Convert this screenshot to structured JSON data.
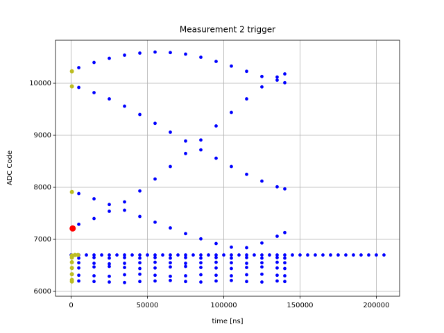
{
  "chart_data": {
    "type": "scatter",
    "title": "Measurement 2 trigger",
    "xlabel": "time [ns]",
    "ylabel": "ADC Code",
    "xlim": [
      -10250,
      215250
    ],
    "ylim": [
      5907,
      10827
    ],
    "xticks": [
      0,
      50000,
      100000,
      150000,
      200000
    ],
    "yticks": [
      6000,
      7000,
      8000,
      9000,
      10000
    ],
    "grid": true,
    "series": [
      {
        "color": "#0000ff",
        "x": [
          5000,
          15000,
          25000,
          35000,
          45000,
          55000,
          65000,
          75000,
          85000,
          95000,
          105000,
          115000,
          125000,
          135000,
          140000
        ],
        "y": [
          10300,
          10400,
          10480,
          10540,
          10580,
          10600,
          10590,
          10560,
          10500,
          10420,
          10330,
          10230,
          10130,
          10060,
          10010
        ]
      },
      {
        "color": "#0000ff",
        "x": [
          5000,
          15000,
          25000,
          35000,
          45000,
          55000,
          65000,
          75000,
          85000,
          95000,
          105000,
          115000,
          125000,
          135000,
          140000
        ],
        "y": [
          9920,
          9820,
          9700,
          9560,
          9400,
          9230,
          9060,
          8890,
          8720,
          8560,
          8400,
          8250,
          8120,
          8010,
          7970
        ]
      },
      {
        "color": "#0000ff",
        "x": [
          5000,
          15000,
          25000,
          35000,
          45000,
          55000,
          65000,
          75000,
          85000,
          95000,
          105000,
          115000,
          125000,
          135000,
          140000
        ],
        "y": [
          7290,
          7400,
          7540,
          7720,
          7930,
          8160,
          8400,
          8650,
          8910,
          9180,
          9440,
          9700,
          9930,
          10120,
          10180
        ]
      },
      {
        "color": "#0000ff",
        "x": [
          5000,
          15000,
          25000,
          35000,
          45000,
          55000,
          65000,
          75000,
          85000,
          95000,
          105000,
          115000,
          125000,
          135000,
          140000
        ],
        "y": [
          7880,
          7780,
          7670,
          7560,
          7440,
          7330,
          7220,
          7110,
          7010,
          6920,
          6850,
          6840,
          6930,
          7060,
          7130
        ]
      },
      {
        "color": "#0000ff",
        "x": [
          0,
          5000,
          10000,
          15000,
          20000,
          25000,
          30000,
          35000,
          40000,
          45000,
          50000,
          55000,
          60000,
          65000,
          70000,
          75000,
          80000,
          85000,
          90000,
          95000,
          100000,
          105000,
          110000,
          115000,
          120000,
          125000,
          130000,
          135000,
          140000,
          145000,
          150000,
          155000,
          160000,
          165000,
          170000,
          175000,
          180000,
          185000,
          190000,
          195000,
          200000,
          205000
        ],
        "y": [
          6700,
          6700,
          6700,
          6700,
          6700,
          6700,
          6700,
          6700,
          6700,
          6700,
          6700,
          6700,
          6700,
          6700,
          6700,
          6700,
          6700,
          6700,
          6700,
          6700,
          6700,
          6700,
          6700,
          6700,
          6700,
          6700,
          6700,
          6700,
          6700,
          6700,
          6700,
          6700,
          6700,
          6700,
          6700,
          6700,
          6700,
          6700,
          6700,
          6700,
          6700,
          6700
        ]
      },
      {
        "color": "#0000ff",
        "x": [
          5000,
          15000,
          25000,
          35000,
          45000,
          55000,
          65000,
          75000,
          85000,
          95000,
          105000,
          115000,
          125000,
          135000,
          140000
        ],
        "y": [
          6640,
          6650,
          6640,
          6650,
          6640,
          6650,
          6640,
          6650,
          6640,
          6650,
          6640,
          6650,
          6640,
          6650,
          6640
        ]
      },
      {
        "color": "#0000ff",
        "x": [
          5000,
          15000,
          25000,
          35000,
          45000,
          55000,
          65000,
          75000,
          85000,
          95000,
          105000,
          115000,
          125000,
          135000,
          140000
        ],
        "y": [
          6550,
          6540,
          6530,
          6540,
          6550,
          6560,
          6550,
          6540,
          6550,
          6560,
          6550,
          6540,
          6550,
          6560,
          6550
        ]
      },
      {
        "color": "#0000ff",
        "x": [
          5000,
          15000,
          25000,
          35000,
          45000,
          55000,
          65000,
          75000,
          85000,
          95000,
          105000,
          115000,
          125000,
          135000,
          140000
        ],
        "y": [
          6450,
          6470,
          6480,
          6460,
          6440,
          6450,
          6470,
          6480,
          6460,
          6450,
          6440,
          6460,
          6470,
          6450,
          6440
        ]
      },
      {
        "color": "#0000ff",
        "x": [
          5000,
          15000,
          25000,
          35000,
          45000,
          55000,
          65000,
          75000,
          85000,
          95000,
          105000,
          115000,
          125000,
          135000,
          140000
        ],
        "y": [
          6310,
          6300,
          6290,
          6320,
          6330,
          6310,
          6290,
          6300,
          6320,
          6310,
          6300,
          6320,
          6330,
          6310,
          6300
        ]
      },
      {
        "color": "#0000ff",
        "x": [
          5000,
          15000,
          25000,
          35000,
          45000,
          55000,
          65000,
          75000,
          85000,
          95000,
          105000,
          115000,
          125000,
          135000,
          140000
        ],
        "y": [
          6200,
          6190,
          6180,
          6170,
          6190,
          6200,
          6210,
          6190,
          6180,
          6200,
          6210,
          6190,
          6180,
          6200,
          6190
        ]
      },
      {
        "color": "#bcbd22",
        "x": [
          500,
          500,
          500,
          500,
          500,
          500,
          500,
          500,
          500,
          500,
          2500,
          4500
        ],
        "y": [
          10230,
          9940,
          7910,
          6690,
          6650,
          6560,
          6450,
          6330,
          6220,
          6190,
          6700,
          6700
        ]
      },
      {
        "color": "#ff0000",
        "x": [
          1000
        ],
        "y": [
          7210
        ]
      }
    ]
  }
}
